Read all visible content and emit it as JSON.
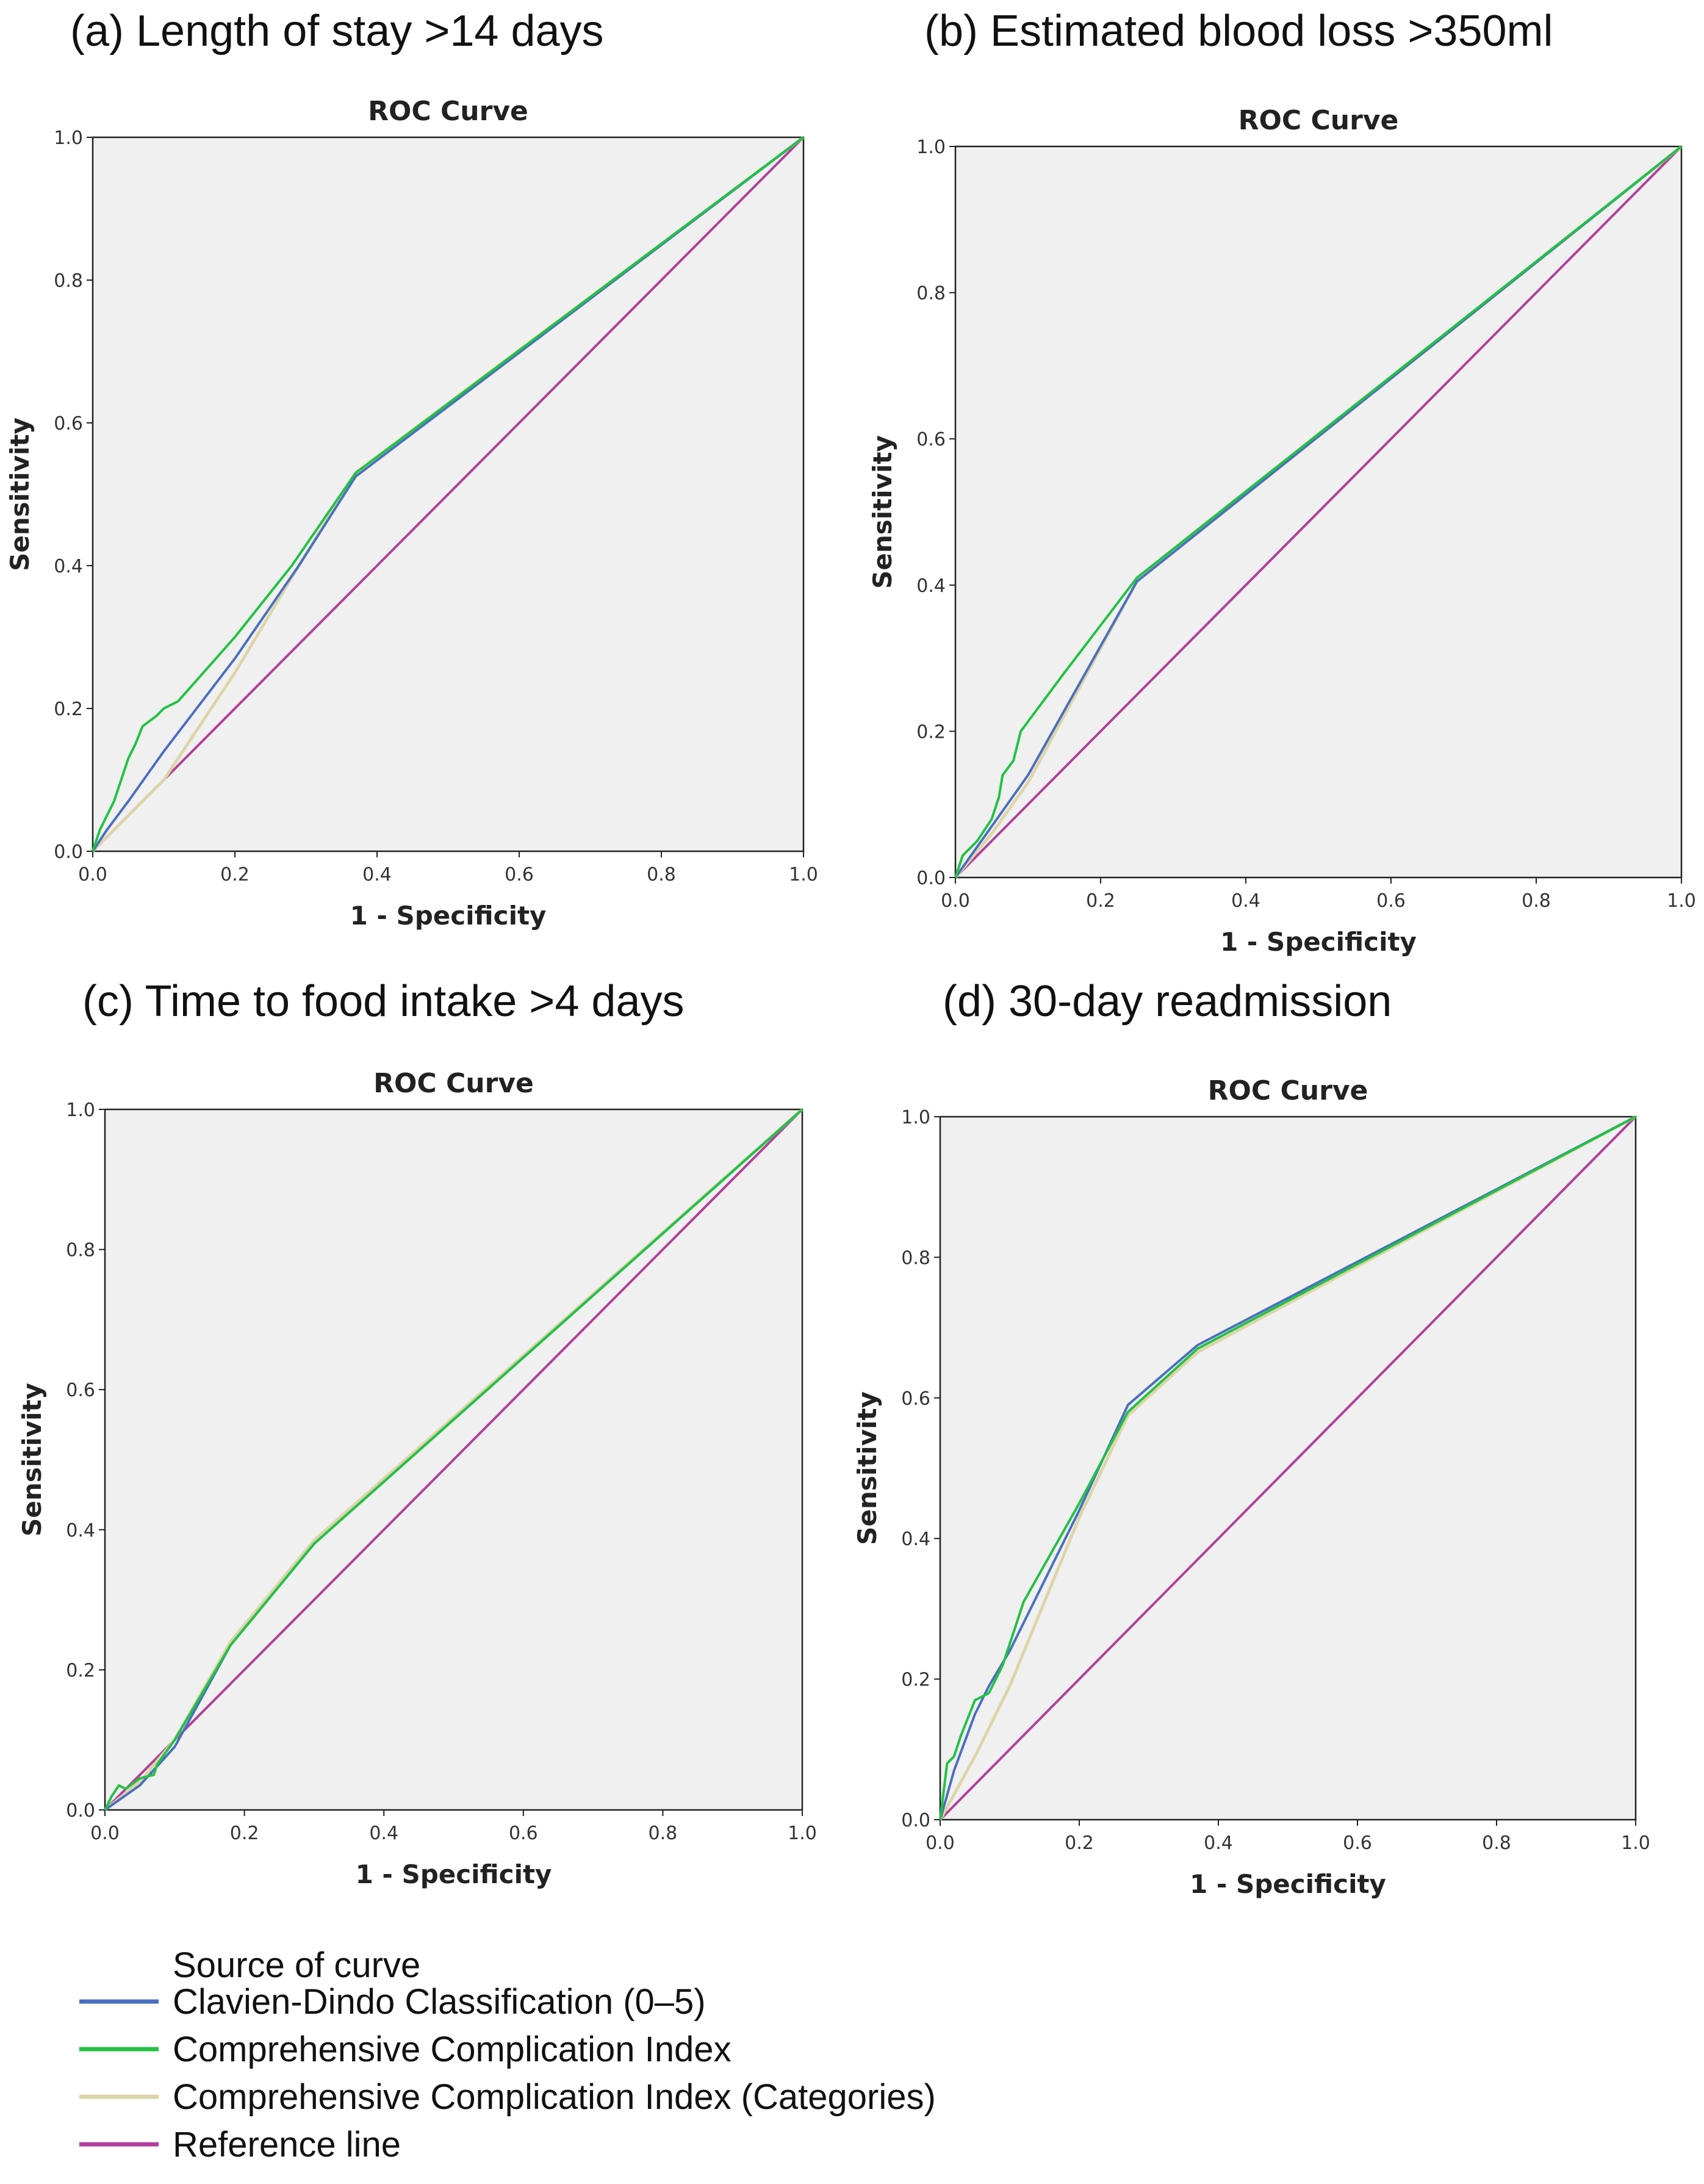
{
  "chart_data": [
    {
      "type": "line",
      "panel_title": "(a) Length of stay >14 days",
      "title": "ROC Curve",
      "xlabel": "1 - Specificity",
      "ylabel": "Sensitivity",
      "xlim": [
        0,
        1
      ],
      "ylim": [
        0,
        1
      ],
      "xticks": [
        "0.0",
        "0.2",
        "0.4",
        "0.6",
        "0.8",
        "1.0"
      ],
      "yticks": [
        "0.0",
        "0.2",
        "0.4",
        "0.6",
        "0.8",
        "1.0"
      ],
      "series": [
        {
          "name": "Reference line",
          "x": [
            0,
            1
          ],
          "y": [
            0,
            1
          ]
        },
        {
          "name": "Comprehensive Complication Index (Categories)",
          "x": [
            0,
            0.02,
            0.05,
            0.1,
            0.2,
            0.29,
            0.37,
            1
          ],
          "y": [
            0,
            0.02,
            0.05,
            0.1,
            0.25,
            0.4,
            0.53,
            1
          ]
        },
        {
          "name": "Clavien-Dindo Classification (0–5)",
          "x": [
            0,
            0.02,
            0.05,
            0.1,
            0.2,
            0.29,
            0.37,
            1
          ],
          "y": [
            0,
            0.03,
            0.07,
            0.14,
            0.27,
            0.4,
            0.525,
            1
          ]
        },
        {
          "name": "Comprehensive Complication Index",
          "x": [
            0,
            0.01,
            0.02,
            0.03,
            0.04,
            0.05,
            0.06,
            0.07,
            0.09,
            0.1,
            0.12,
            0.2,
            0.28,
            0.37,
            1
          ],
          "y": [
            0,
            0.03,
            0.05,
            0.07,
            0.1,
            0.13,
            0.15,
            0.175,
            0.19,
            0.2,
            0.21,
            0.3,
            0.4,
            0.53,
            1
          ]
        }
      ]
    },
    {
      "type": "line",
      "panel_title": "(b) Estimated blood loss >350ml",
      "title": "ROC Curve",
      "xlabel": "1 - Specificity",
      "ylabel": "Sensitivity",
      "xlim": [
        0,
        1
      ],
      "ylim": [
        0,
        1
      ],
      "xticks": [
        "0.0",
        "0.2",
        "0.4",
        "0.6",
        "0.8",
        "1.0"
      ],
      "yticks": [
        "0.0",
        "0.2",
        "0.4",
        "0.6",
        "0.8",
        "1.0"
      ],
      "series": [
        {
          "name": "Reference line",
          "x": [
            0,
            1
          ],
          "y": [
            0,
            1
          ]
        },
        {
          "name": "Comprehensive Complication Index (Categories)",
          "x": [
            0,
            0.05,
            0.1,
            0.25,
            1
          ],
          "y": [
            0,
            0.06,
            0.13,
            0.405,
            1
          ]
        },
        {
          "name": "Clavien-Dindo Classification (0–5)",
          "x": [
            0,
            0.05,
            0.1,
            0.25,
            1
          ],
          "y": [
            0,
            0.07,
            0.14,
            0.405,
            1
          ]
        },
        {
          "name": "Comprehensive Complication Index",
          "x": [
            0,
            0.01,
            0.02,
            0.03,
            0.05,
            0.06,
            0.065,
            0.08,
            0.09,
            0.15,
            0.25,
            1
          ],
          "y": [
            0,
            0.03,
            0.04,
            0.05,
            0.08,
            0.11,
            0.14,
            0.16,
            0.2,
            0.28,
            0.41,
            1
          ]
        }
      ]
    },
    {
      "type": "line",
      "panel_title": "(c) Time to food intake >4 days",
      "title": "ROC Curve",
      "xlabel": "1 - Specificity",
      "ylabel": "Sensitivity",
      "xlim": [
        0,
        1
      ],
      "ylim": [
        0,
        1
      ],
      "xticks": [
        "0.0",
        "0.2",
        "0.4",
        "0.6",
        "0.8",
        "1.0"
      ],
      "yticks": [
        "0.0",
        "0.2",
        "0.4",
        "0.6",
        "0.8",
        "1.0"
      ],
      "series": [
        {
          "name": "Reference line",
          "x": [
            0,
            1
          ],
          "y": [
            0,
            1
          ]
        },
        {
          "name": "Comprehensive Complication Index (Categories)",
          "x": [
            0,
            0.05,
            0.1,
            0.18,
            0.3,
            1
          ],
          "y": [
            0,
            0.04,
            0.1,
            0.24,
            0.385,
            1
          ]
        },
        {
          "name": "Clavien-Dindo Classification (0–5)",
          "x": [
            0,
            0.05,
            0.1,
            0.18,
            0.3,
            1
          ],
          "y": [
            0,
            0.035,
            0.09,
            0.235,
            0.38,
            1
          ]
        },
        {
          "name": "Comprehensive Complication Index",
          "x": [
            0,
            0.01,
            0.02,
            0.03,
            0.05,
            0.07,
            0.075,
            0.1,
            0.18,
            0.3,
            1
          ],
          "y": [
            0,
            0.02,
            0.035,
            0.03,
            0.045,
            0.05,
            0.065,
            0.1,
            0.235,
            0.38,
            1
          ]
        }
      ]
    },
    {
      "type": "line",
      "panel_title": "(d) 30-day readmission",
      "title": "ROC Curve",
      "xlabel": "1 - Specificity",
      "ylabel": "Sensitivity",
      "xlim": [
        0,
        1
      ],
      "ylim": [
        0,
        1
      ],
      "xticks": [
        "0.0",
        "0.2",
        "0.4",
        "0.6",
        "0.8",
        "1.0"
      ],
      "yticks": [
        "0.0",
        "0.2",
        "0.4",
        "0.6",
        "0.8",
        "1.0"
      ],
      "series": [
        {
          "name": "Reference line",
          "x": [
            0,
            1
          ],
          "y": [
            0,
            1
          ]
        },
        {
          "name": "Comprehensive Complication Index (Categories)",
          "x": [
            0,
            0.05,
            0.1,
            0.2,
            0.27,
            0.37,
            1
          ],
          "y": [
            0,
            0.09,
            0.19,
            0.43,
            0.575,
            0.665,
            1
          ]
        },
        {
          "name": "Clavien-Dindo Classification (0–5)",
          "x": [
            0,
            0.02,
            0.05,
            0.07,
            0.1,
            0.2,
            0.27,
            0.37,
            1
          ],
          "y": [
            0,
            0.07,
            0.15,
            0.19,
            0.24,
            0.44,
            0.59,
            0.675,
            1
          ]
        },
        {
          "name": "Comprehensive Complication Index",
          "x": [
            0,
            0.01,
            0.02,
            0.03,
            0.05,
            0.07,
            0.09,
            0.1,
            0.12,
            0.2,
            0.27,
            0.37,
            1
          ],
          "y": [
            0,
            0.08,
            0.09,
            0.12,
            0.17,
            0.18,
            0.22,
            0.25,
            0.31,
            0.45,
            0.58,
            0.67,
            1
          ]
        }
      ]
    }
  ],
  "legend": {
    "title": "Source of curve",
    "items": [
      {
        "label": "Clavien-Dindo Classification (0–5)",
        "color": "#4a6fc0"
      },
      {
        "label": "Comprehensive Complication Index",
        "color": "#22c244"
      },
      {
        "label": "Comprehensive Complication Index (Categories)",
        "color": "#ddd5a8"
      },
      {
        "label": "Reference line",
        "color": "#b0409a"
      }
    ]
  },
  "colors": {
    "plot_background": "#f0f0f0",
    "Reference line": "#b0409a",
    "Comprehensive Complication Index (Categories)": "#ddd5a8",
    "Clavien-Dindo Classification (0–5)": "#4a6fc0",
    "Comprehensive Complication Index": "#22c244"
  }
}
